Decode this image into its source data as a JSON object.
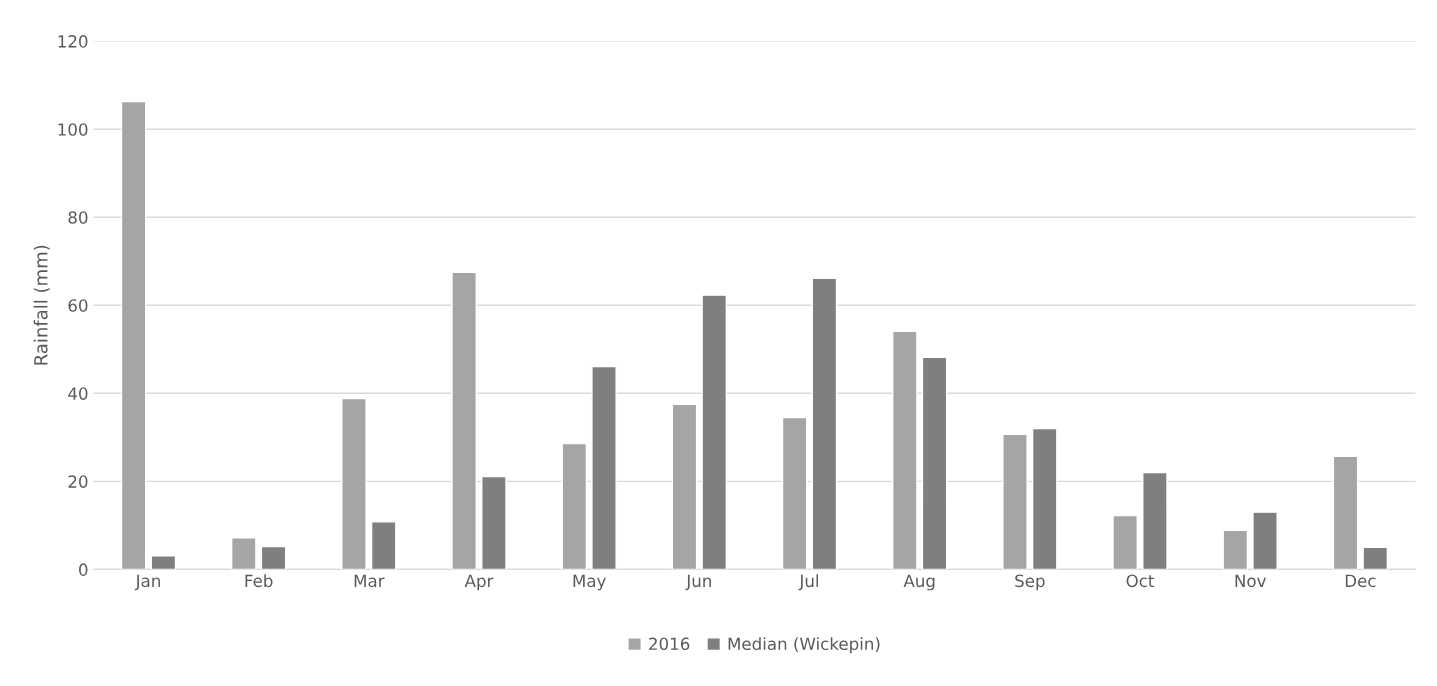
{
  "chart_data": {
    "type": "bar",
    "ylabel": "Rainfall (mm)",
    "categories": [
      "Jan",
      "Feb",
      "Mar",
      "Apr",
      "May",
      "Jun",
      "Jul",
      "Aug",
      "Sep",
      "Oct",
      "Nov",
      "Dec"
    ],
    "series": [
      {
        "name": "2016",
        "color": "#a5a5a5",
        "values": [
          106.3,
          7.2,
          38.8,
          67.5,
          28.6,
          37.5,
          34.5,
          54.1,
          30.7,
          12.2,
          8.9,
          25.7
        ]
      },
      {
        "name": "Median (Wickepin)",
        "color": "#7f7f7f",
        "values": [
          3.1,
          5.2,
          10.8,
          21.1,
          46.1,
          62.3,
          66.1,
          48.2,
          32.0,
          22.0,
          13.0,
          5.0
        ]
      }
    ],
    "ylim": [
      0,
      120
    ],
    "yticks": [
      0,
      20,
      40,
      60,
      80,
      100,
      120
    ],
    "grid": "y",
    "legend": "bottom"
  }
}
